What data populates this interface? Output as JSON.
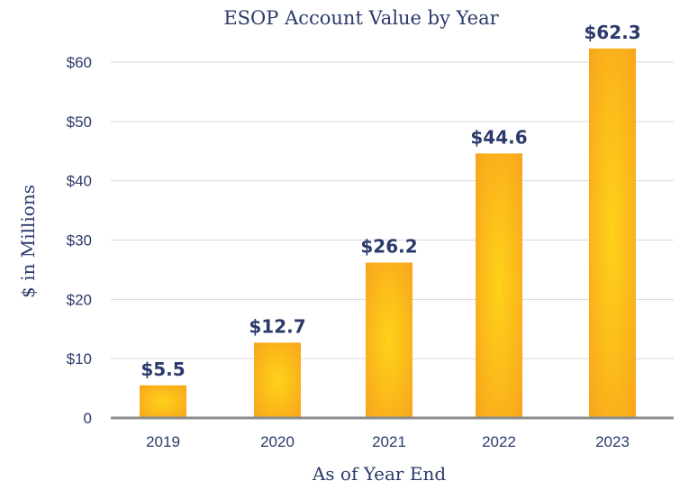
{
  "chart_data": {
    "type": "bar",
    "title": "ESOP Account Value by Year",
    "xlabel": "As of Year End",
    "ylabel": "$ in Millions",
    "categories": [
      "2019",
      "2020",
      "2021",
      "2022",
      "2023"
    ],
    "values": [
      5.5,
      12.7,
      26.2,
      44.6,
      62.3
    ],
    "data_labels": [
      "$5.5",
      "$12.7",
      "$26.2",
      "$44.6",
      "$62.3"
    ],
    "ylim": [
      0,
      60
    ],
    "yticks": [
      0,
      10,
      20,
      30,
      40,
      50,
      60
    ],
    "ytick_labels": [
      "0",
      "$10",
      "$20",
      "$30",
      "$40",
      "$50",
      "$60"
    ],
    "grid": true,
    "colors": {
      "bar_center": "#ffd21a",
      "bar_edge": "#f7a21c",
      "text": "#2b3a6b"
    }
  }
}
